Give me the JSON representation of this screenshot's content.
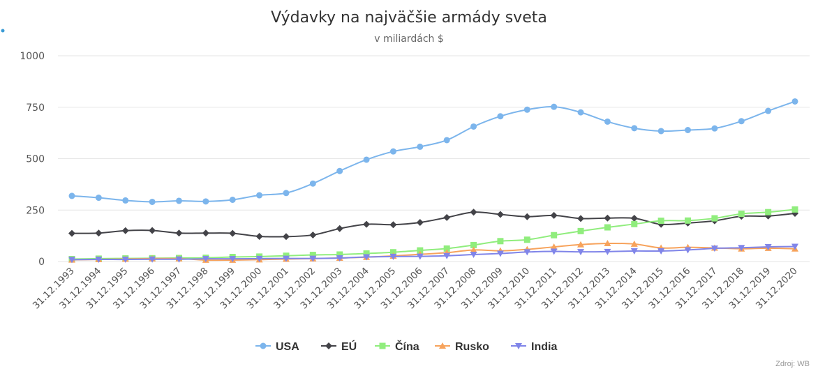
{
  "chart_data": {
    "type": "line",
    "title": "Výdavky na najväčšie armády sveta",
    "subtitle": "v miliardách $",
    "credit": "Zdroj: WB",
    "ylim": [
      0,
      1000
    ],
    "yticks": [
      "0",
      "250",
      "500",
      "750",
      "1000"
    ],
    "ytick_values": [
      0,
      250,
      500,
      750,
      1000
    ],
    "legend_position": "bottom-center",
    "grid": true,
    "categories": [
      "31.12.1993",
      "31.12.1994",
      "31.12.1995",
      "31.12.1996",
      "31.12.1997",
      "31.12.1998",
      "31.12.1999",
      "31.12.2000",
      "31.12.2001",
      "31.12.2002",
      "31.12.2003",
      "31.12.2004",
      "31.12.2005",
      "31.12.2006",
      "31.12.2007",
      "31.12.2008",
      "31.12.2009",
      "31.12.2010",
      "31.12.2011",
      "31.12.2012",
      "31.12.2013",
      "31.12.2014",
      "31.12.2015",
      "31.12.2016",
      "31.12.2017",
      "31.12.2018",
      "31.12.2019",
      "31.12.2020"
    ],
    "series": [
      {
        "name": "USA",
        "color": "#7cb5ec",
        "marker": "circle",
        "values": [
          319,
          310,
          297,
          290,
          295,
          292,
          300,
          322,
          333,
          379,
          440,
          495,
          535,
          558,
          590,
          656,
          706,
          738,
          752,
          725,
          680,
          648,
          634,
          639,
          647,
          682,
          732,
          778
        ]
      },
      {
        "name": "EÚ",
        "color": "#434348",
        "marker": "diamond",
        "values": [
          137,
          138,
          150,
          151,
          138,
          138,
          137,
          122,
          121,
          129,
          160,
          181,
          179,
          190,
          214,
          240,
          229,
          218,
          224,
          209,
          211,
          210,
          181,
          187,
          198,
          220,
          221,
          234
        ]
      },
      {
        "name": "Čína",
        "color": "#90ed7d",
        "marker": "square",
        "values": [
          12,
          14,
          15,
          16,
          17,
          18,
          22,
          24,
          28,
          32,
          34,
          39,
          45,
          54,
          63,
          80,
          99,
          106,
          128,
          148,
          166,
          182,
          198,
          199,
          210,
          232,
          240,
          253
        ]
      },
      {
        "name": "Rusko",
        "color": "#f7a35c",
        "marker": "triangle",
        "values": [
          8,
          10,
          12,
          14,
          14,
          7,
          7,
          9,
          12,
          14,
          17,
          21,
          27,
          35,
          43,
          56,
          52,
          59,
          71,
          82,
          88,
          85,
          66,
          69,
          66,
          62,
          65,
          62
        ]
      },
      {
        "name": "India",
        "color": "#8085e9",
        "marker": "triangle-down",
        "values": [
          9,
          10,
          10,
          11,
          11,
          13,
          13,
          14,
          15,
          15,
          17,
          22,
          24,
          25,
          28,
          34,
          39,
          46,
          49,
          47,
          48,
          51,
          51,
          56,
          64,
          67,
          71,
          73
        ]
      }
    ]
  }
}
